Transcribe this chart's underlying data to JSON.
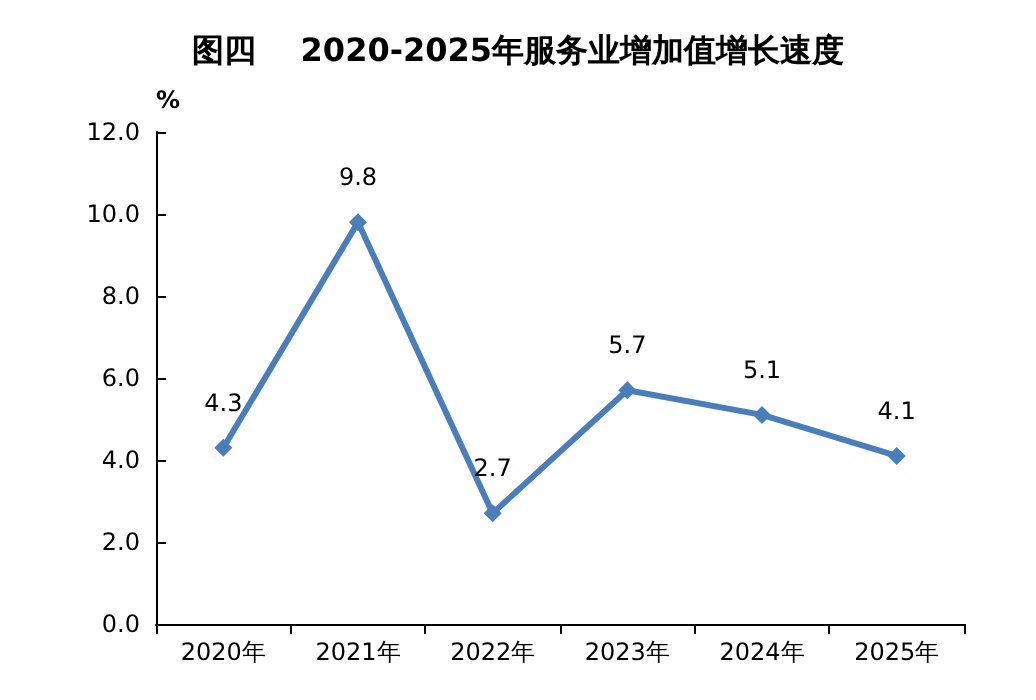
{
  "chart_data": {
    "type": "line",
    "title": "图四    2020-2025年服务业增加值增长速度",
    "ylabel": "%",
    "categories": [
      "2020年",
      "2021年",
      "2022年",
      "2023年",
      "2024年",
      "2025年"
    ],
    "series": [
      {
        "color": "#4a7ebb",
        "values": [
          4.3,
          9.8,
          2.7,
          5.7,
          5.1,
          4.1
        ]
      }
    ],
    "ylim": [
      0,
      12
    ],
    "yticks": [
      {
        "value": 0,
        "label": "0.0"
      },
      {
        "value": 2,
        "label": "2.0"
      },
      {
        "value": 4,
        "label": "4.0"
      },
      {
        "value": 6,
        "label": "6.0"
      },
      {
        "value": 8,
        "label": "8.0"
      },
      {
        "value": 10,
        "label": "10.0"
      },
      {
        "value": 12,
        "label": "12.0"
      }
    ],
    "data_labels": true,
    "marker": "diamond",
    "line_style": "solid",
    "grid": false
  }
}
